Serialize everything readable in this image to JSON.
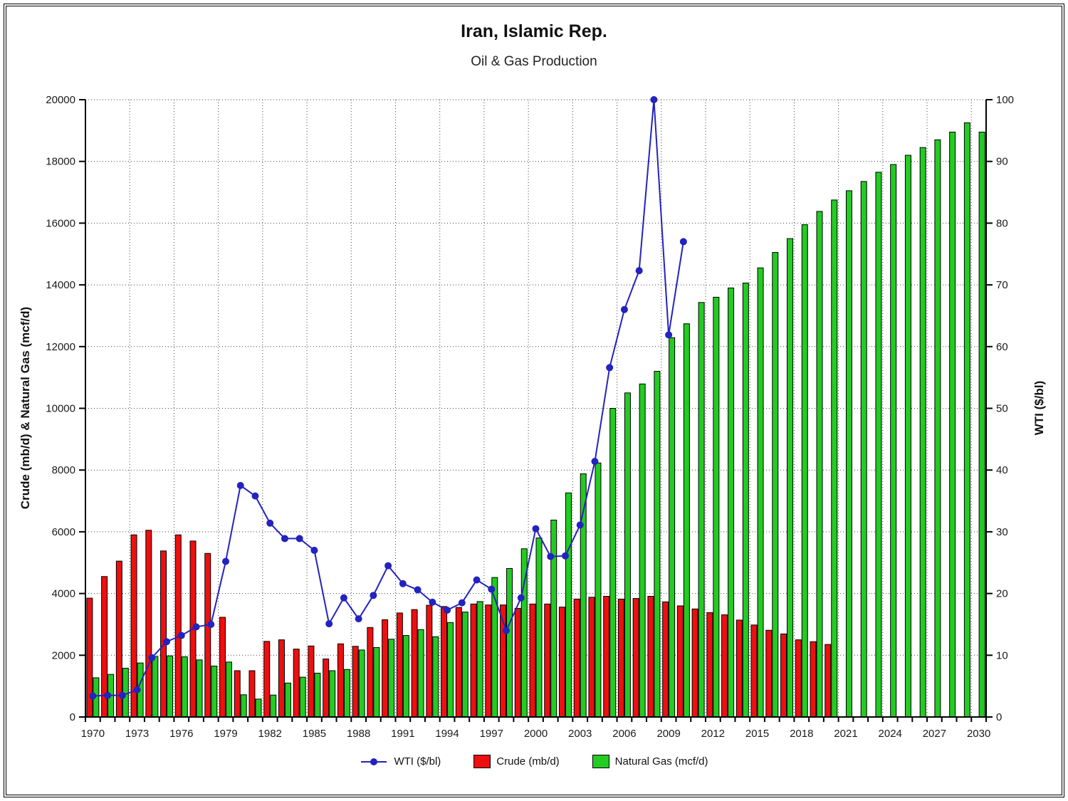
{
  "title": "Iran, Islamic Rep.",
  "subtitle": "Oil & Gas Production",
  "chart_data": {
    "type": "bar",
    "x": [
      1970,
      1971,
      1972,
      1973,
      1974,
      1975,
      1976,
      1977,
      1978,
      1979,
      1980,
      1981,
      1982,
      1983,
      1984,
      1985,
      1986,
      1987,
      1988,
      1989,
      1990,
      1991,
      1992,
      1993,
      1994,
      1995,
      1996,
      1997,
      1998,
      1999,
      2000,
      2001,
      2002,
      2003,
      2004,
      2005,
      2006,
      2007,
      2008,
      2009,
      2010,
      2011,
      2012,
      2013,
      2014,
      2015,
      2016,
      2017,
      2018,
      2019,
      2020,
      2021,
      2022,
      2023,
      2024,
      2025,
      2026,
      2027,
      2028,
      2029,
      2030
    ],
    "x_tick_labels": [
      1970,
      1973,
      1976,
      1979,
      1982,
      1985,
      1988,
      1991,
      1994,
      1997,
      2000,
      2003,
      2006,
      2009,
      2012,
      2015,
      2018,
      2021,
      2024,
      2027,
      2030
    ],
    "ylabel_left": "Crude (mb/d) & Natural Gas (mcf/d)",
    "ylabel_right": "WTI ($/bl)",
    "ylim_left": [
      0,
      20000
    ],
    "ylim_right": [
      0,
      100
    ],
    "y_left_ticks": [
      0,
      2000,
      4000,
      6000,
      8000,
      10000,
      12000,
      14000,
      16000,
      18000,
      20000
    ],
    "y_right_ticks": [
      0,
      10,
      20,
      30,
      40,
      50,
      60,
      70,
      80,
      90,
      100
    ],
    "grid": true,
    "legend_position": "bottom",
    "series": [
      {
        "name": "WTI ($/bl)",
        "kind": "line",
        "axis": "right",
        "color": "#2323bf",
        "values": [
          3.4,
          3.5,
          3.5,
          4.4,
          9.6,
          12.2,
          13.2,
          14.6,
          15.0,
          25.2,
          37.5,
          35.8,
          31.4,
          28.9,
          28.9,
          27.0,
          15.1,
          19.3,
          15.9,
          19.7,
          24.5,
          21.6,
          20.6,
          18.6,
          17.3,
          18.5,
          22.2,
          20.7,
          14.0,
          19.3,
          30.5,
          26.0,
          26.1,
          31.1,
          41.4,
          56.6,
          66.0,
          72.3,
          100.0,
          61.9,
          77.0,
          null,
          null,
          null,
          null,
          null,
          null,
          null,
          null,
          null,
          null,
          null,
          null,
          null,
          null,
          null,
          null,
          null,
          null,
          null,
          null
        ]
      },
      {
        "name": "Crude (mb/d)",
        "kind": "bar",
        "axis": "left",
        "color": "#ee0f0f",
        "values": [
          3850,
          4550,
          5050,
          5900,
          6050,
          5380,
          5900,
          5700,
          5300,
          3230,
          1500,
          1500,
          2450,
          2500,
          2200,
          2300,
          1880,
          2370,
          2290,
          2900,
          3150,
          3370,
          3480,
          3620,
          3580,
          3550,
          3660,
          3630,
          3630,
          3520,
          3660,
          3660,
          3560,
          3820,
          3880,
          3910,
          3820,
          3840,
          3910,
          3730,
          3600,
          3500,
          3380,
          3310,
          3140,
          2980,
          2810,
          2690,
          2500,
          2440,
          2350,
          null,
          null,
          null,
          null,
          null,
          null,
          null,
          null,
          null,
          null
        ]
      },
      {
        "name": "Natural Gas (mcf/d)",
        "kind": "bar",
        "axis": "left",
        "color": "#23cb23",
        "values": [
          1270,
          1380,
          1580,
          1750,
          1960,
          1980,
          1950,
          1850,
          1650,
          1780,
          720,
          580,
          710,
          1100,
          1290,
          1420,
          1500,
          1540,
          2170,
          2250,
          2520,
          2640,
          2830,
          2600,
          3060,
          3400,
          3740,
          4520,
          4810,
          5450,
          5800,
          6380,
          7260,
          7880,
          8230,
          10000,
          10500,
          10790,
          11200,
          12290,
          12740,
          13430,
          13600,
          13900,
          14060,
          14550,
          15050,
          15500,
          15950,
          16380,
          16750,
          17050,
          17350,
          17650,
          17900,
          18200,
          18450,
          18700,
          18950,
          19250,
          18950
        ]
      }
    ]
  }
}
